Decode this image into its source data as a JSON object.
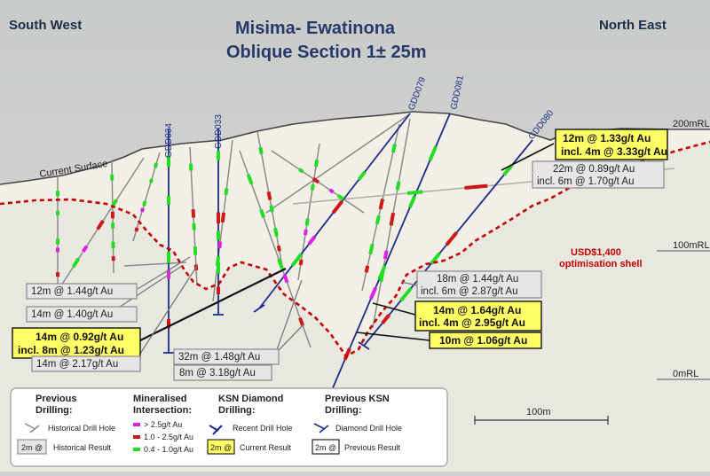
{
  "title": {
    "line1": "Misima- Ewatinona",
    "line2": "Oblique Section 1± 25m"
  },
  "orientation": {
    "left": "South West",
    "right": "North East"
  },
  "current_surface_label": "Current Surface",
  "elevations": [
    "200mRL",
    "100mRL",
    "0mRL"
  ],
  "shell_label": {
    "line1": "USD$1,400",
    "line2": "optimisation shell"
  },
  "drill_holes": [
    "GDD034",
    "GDD033",
    "GDD079",
    "GDD081",
    "GDD080"
  ],
  "results": {
    "r12_133": {
      "line1": "12m @ 1.33g/t Au",
      "line2": "incl. 4m @ 3.33g/t Au"
    },
    "r22_089": {
      "line1": "22m @ 0.89g/t Au",
      "line2": "incl. 6m @ 1.70g/t Au"
    },
    "r18_144": {
      "line1": "18m @ 1.44g/t Au",
      "line2": "incl. 6m @ 2.87g/t Au"
    },
    "r14_164": {
      "line1": "14m @ 1.64g/t Au",
      "line2": "incl. 4m @ 2.95g/t Au"
    },
    "r10_106": {
      "line1": "10m @ 1.06g/t Au"
    },
    "r12_144": {
      "line1": "12m @ 1.44g/t Au"
    },
    "r14_140": {
      "line1": "14m @ 1.40g/t Au"
    },
    "r14_092": {
      "line1": "14m @ 0.92g/t Au",
      "line2": "incl. 8m @ 1.23g/t Au"
    },
    "r14_217": {
      "line1": "14m @ 2.17g/t Au"
    },
    "r32_148": {
      "line1": "32m @ 1.48g/t Au"
    },
    "r8_318": {
      "line1": "8m @ 3.18g/t Au"
    }
  },
  "legend": {
    "previous": {
      "heading_line1": "Previous",
      "heading_line2": "Drilling:",
      "hole": "Historical Drill Hole",
      "badge": "2m @",
      "result": "Historical Result"
    },
    "mineralised": {
      "heading_line1": "Mineralised",
      "heading_line2": "Intersection:",
      "items": [
        "> 2.5g/t Au",
        "1.0 - 2.5g/t Au",
        "0.4 - 1.0g/t Au"
      ]
    },
    "ksn": {
      "heading_line1": "KSN Diamond",
      "heading_line2": "Drilling:",
      "hole": "Recent Drill Hole",
      "badge": "2m @",
      "result": "Current Result"
    },
    "prev_ksn": {
      "heading_line1": "Previous KSN",
      "heading_line2": "Drilling:",
      "hole": "Diamond Drill Hole",
      "badge": "2m @",
      "result": "Previous Result"
    }
  },
  "scale_bar": "100m",
  "colors": {
    "background": "#cfd1cf",
    "rock": "#f1efe6",
    "shell": "#c00000",
    "recent_hole": "#1c2c8a",
    "current_result_bg": "#ffff66",
    "grade_high": "#e020e0",
    "grade_mid": "#d01818",
    "grade_low": "#22dd22"
  }
}
